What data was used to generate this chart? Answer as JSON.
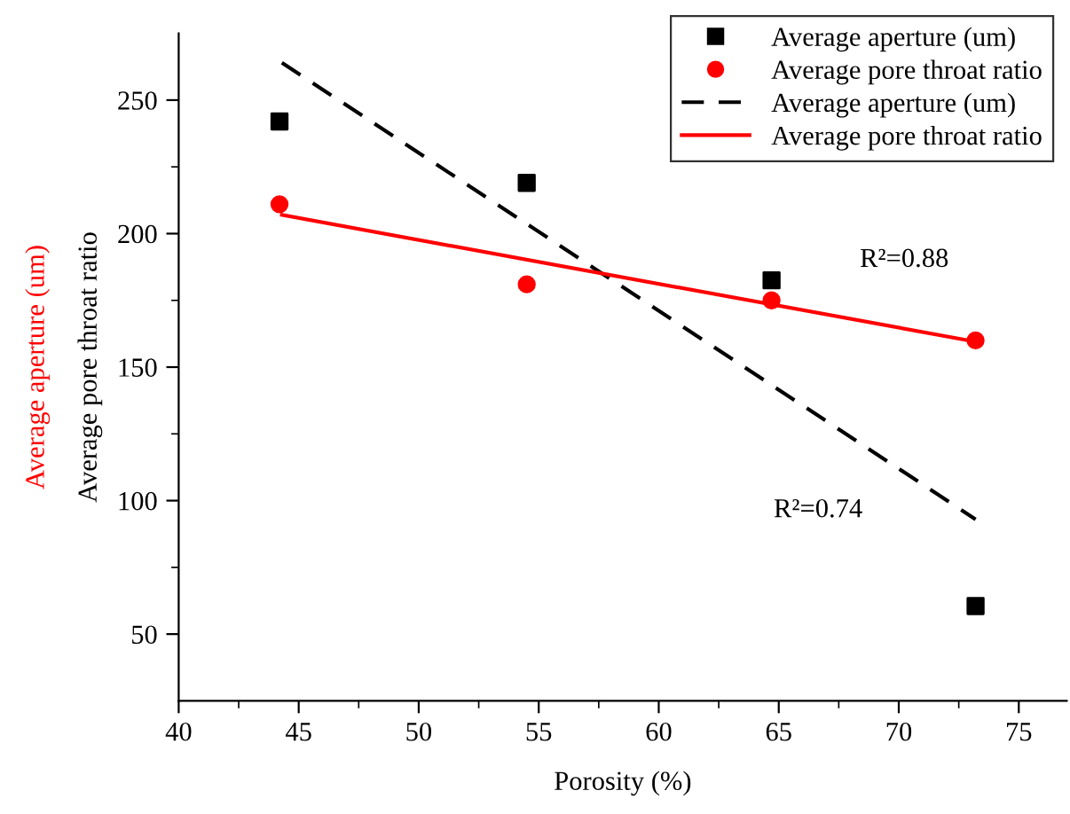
{
  "chart_data": {
    "type": "scatter",
    "xlabel": "Porosity (%)",
    "ylabel": "Average pore throat ratio",
    "annotations": [
      "Average aperture (um)",
      "R²=0.88",
      "R²=0.74"
    ],
    "xlim": [
      40,
      77
    ],
    "ylim": [
      25,
      275
    ],
    "xticks": [
      40,
      {
        "value": 42.5,
        "label": null
      },
      45,
      {
        "value": 47.5,
        "label": null
      },
      50,
      {
        "value": 52.5,
        "label": null
      },
      55,
      {
        "value": 57.5,
        "label": null
      },
      60,
      {
        "value": 62.5,
        "label": null
      },
      65,
      {
        "value": 67.5,
        "label": null
      },
      70,
      {
        "value": 72.5,
        "label": null
      },
      75
    ],
    "yticks": [
      50,
      {
        "value": 75,
        "label": null
      },
      100,
      {
        "value": 125,
        "label": null
      },
      150,
      {
        "value": 175,
        "label": null
      },
      200,
      {
        "value": 225,
        "label": null
      },
      250
    ],
    "grid": false,
    "legend": "top right",
    "series": [
      {
        "name": "Average aperture (um)",
        "marker": "square",
        "color": "#000000",
        "x": [
          44.2,
          54.5,
          64.7,
          73.2
        ],
        "values": [
          242,
          219,
          182.5,
          60.5
        ]
      },
      {
        "name": "Average pore throat ratio",
        "marker": "circle",
        "color": "#ff0000",
        "x": [
          44.2,
          54.5,
          64.7,
          73.2
        ],
        "values": [
          211,
          181,
          175,
          160
        ]
      },
      {
        "name": "Average aperture (um)",
        "type": "line",
        "line_style": "dashed",
        "color": "#000000",
        "x": [
          44.3,
          73.2
        ],
        "values": [
          264,
          93
        ]
      },
      {
        "name": "Average pore throat ratio",
        "type": "line",
        "line_style": "solid",
        "color": "#ff0000",
        "x": [
          44.3,
          73.2
        ],
        "values": [
          207,
          159.5
        ]
      }
    ]
  }
}
